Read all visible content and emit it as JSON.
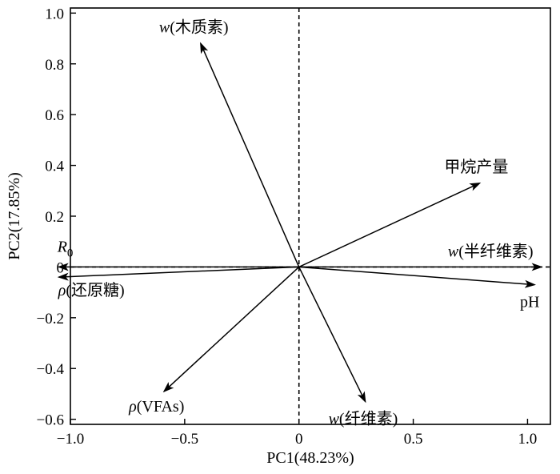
{
  "chart_data": {
    "type": "biplot",
    "xlabel": "PC1(48.23%)",
    "ylabel": "PC2(17.85%)",
    "xlim": [
      -1.0,
      1.1
    ],
    "ylim": [
      -0.62,
      1.02
    ],
    "xticks": [
      -1.0,
      -0.5,
      0,
      0.5,
      1.0
    ],
    "xtick_labels": [
      "−1.0",
      "−0.5",
      "0",
      "0.5",
      "1.0"
    ],
    "yticks": [
      -0.6,
      -0.4,
      -0.2,
      0,
      0.2,
      0.4,
      0.6,
      0.8,
      1.0
    ],
    "ytick_labels": [
      "−0.6",
      "−0.4",
      "−0.2",
      "0",
      "0.2",
      "0.4",
      "0.6",
      "0.8",
      "1.0"
    ],
    "reference_lines": {
      "x": 0,
      "y": 0,
      "style": "dashed"
    },
    "vectors": [
      {
        "id": "lignin",
        "label_italic": "w",
        "label_rest": "(木质素)",
        "x": -0.43,
        "y": 0.88
      },
      {
        "id": "methane",
        "label_italic": "",
        "label_rest": "甲烷产量",
        "x": 0.79,
        "y": 0.33
      },
      {
        "id": "hemicellulose",
        "label_italic": "w",
        "label_rest": "(半纤维素)",
        "x": 1.06,
        "y": 0.0
      },
      {
        "id": "ph",
        "label_italic": "",
        "label_rest": "pH",
        "x": 1.03,
        "y": -0.07
      },
      {
        "id": "cellulose",
        "label_italic": "w",
        "label_rest": "(纤维素)",
        "x": 0.29,
        "y": -0.53
      },
      {
        "id": "vfas",
        "label_italic": "ρ",
        "label_rest": "(VFAs)",
        "x": -0.59,
        "y": -0.49
      },
      {
        "id": "reducing-sugar",
        "label_italic": "ρ",
        "label_rest": "(还原糖)",
        "x": -1.05,
        "y": -0.04
      },
      {
        "id": "r0",
        "label_italic": "R",
        "label_rest": "",
        "label_sub": "0",
        "x": -1.05,
        "y": 0.0
      }
    ]
  }
}
